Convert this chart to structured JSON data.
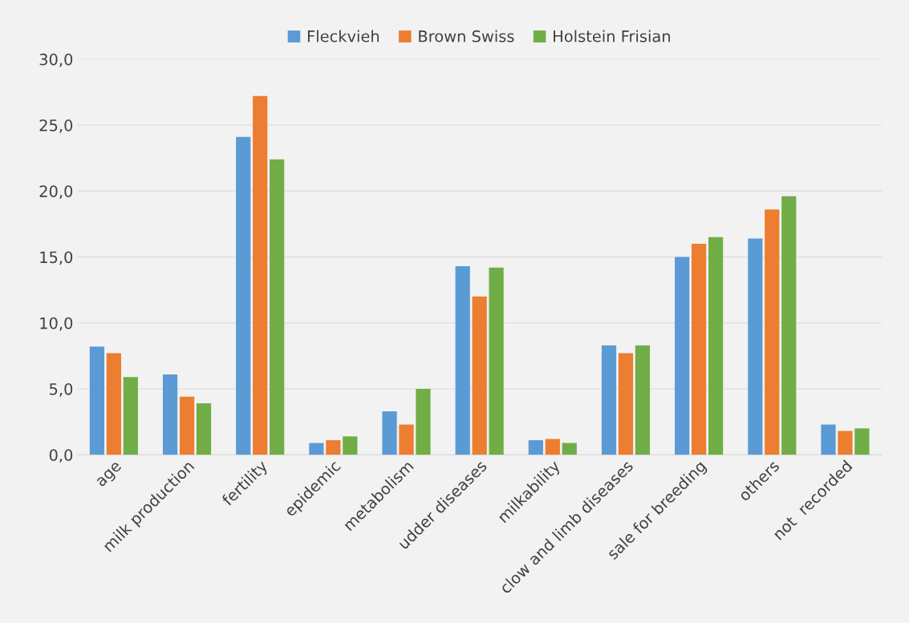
{
  "chart_data": {
    "type": "bar",
    "categories": [
      "age",
      "milk production",
      "fertility",
      "epidemic",
      "metabolism",
      "udder diseases",
      "milkability",
      "clow and limb diseases",
      "sale for breeding",
      "others",
      "not  recorded"
    ],
    "series": [
      {
        "name": "Fleckvieh",
        "color": "#5b9bd5",
        "values": [
          8.2,
          6.1,
          24.1,
          0.9,
          3.3,
          14.3,
          1.1,
          8.3,
          15.0,
          16.4,
          2.3
        ]
      },
      {
        "name": "Brown Swiss",
        "color": "#ed7d31",
        "values": [
          7.7,
          4.4,
          27.2,
          1.1,
          2.3,
          12.0,
          1.2,
          7.7,
          16.0,
          18.6,
          1.8
        ]
      },
      {
        "name": "Holstein Frisian",
        "color": "#70ad47",
        "values": [
          5.9,
          3.9,
          22.4,
          1.4,
          5.0,
          14.2,
          0.9,
          8.3,
          16.5,
          19.6,
          2.0
        ]
      }
    ],
    "ylim": [
      0,
      30
    ],
    "yticks": [
      {
        "value": 0,
        "label": "0,0"
      },
      {
        "value": 5,
        "label": "5,0"
      },
      {
        "value": 10,
        "label": "10,0"
      },
      {
        "value": 15,
        "label": "15,0"
      },
      {
        "value": 20,
        "label": "20,0"
      },
      {
        "value": 25,
        "label": "25,0"
      },
      {
        "value": 30,
        "label": "30,0"
      }
    ],
    "grid": "y",
    "legend": "top"
  }
}
